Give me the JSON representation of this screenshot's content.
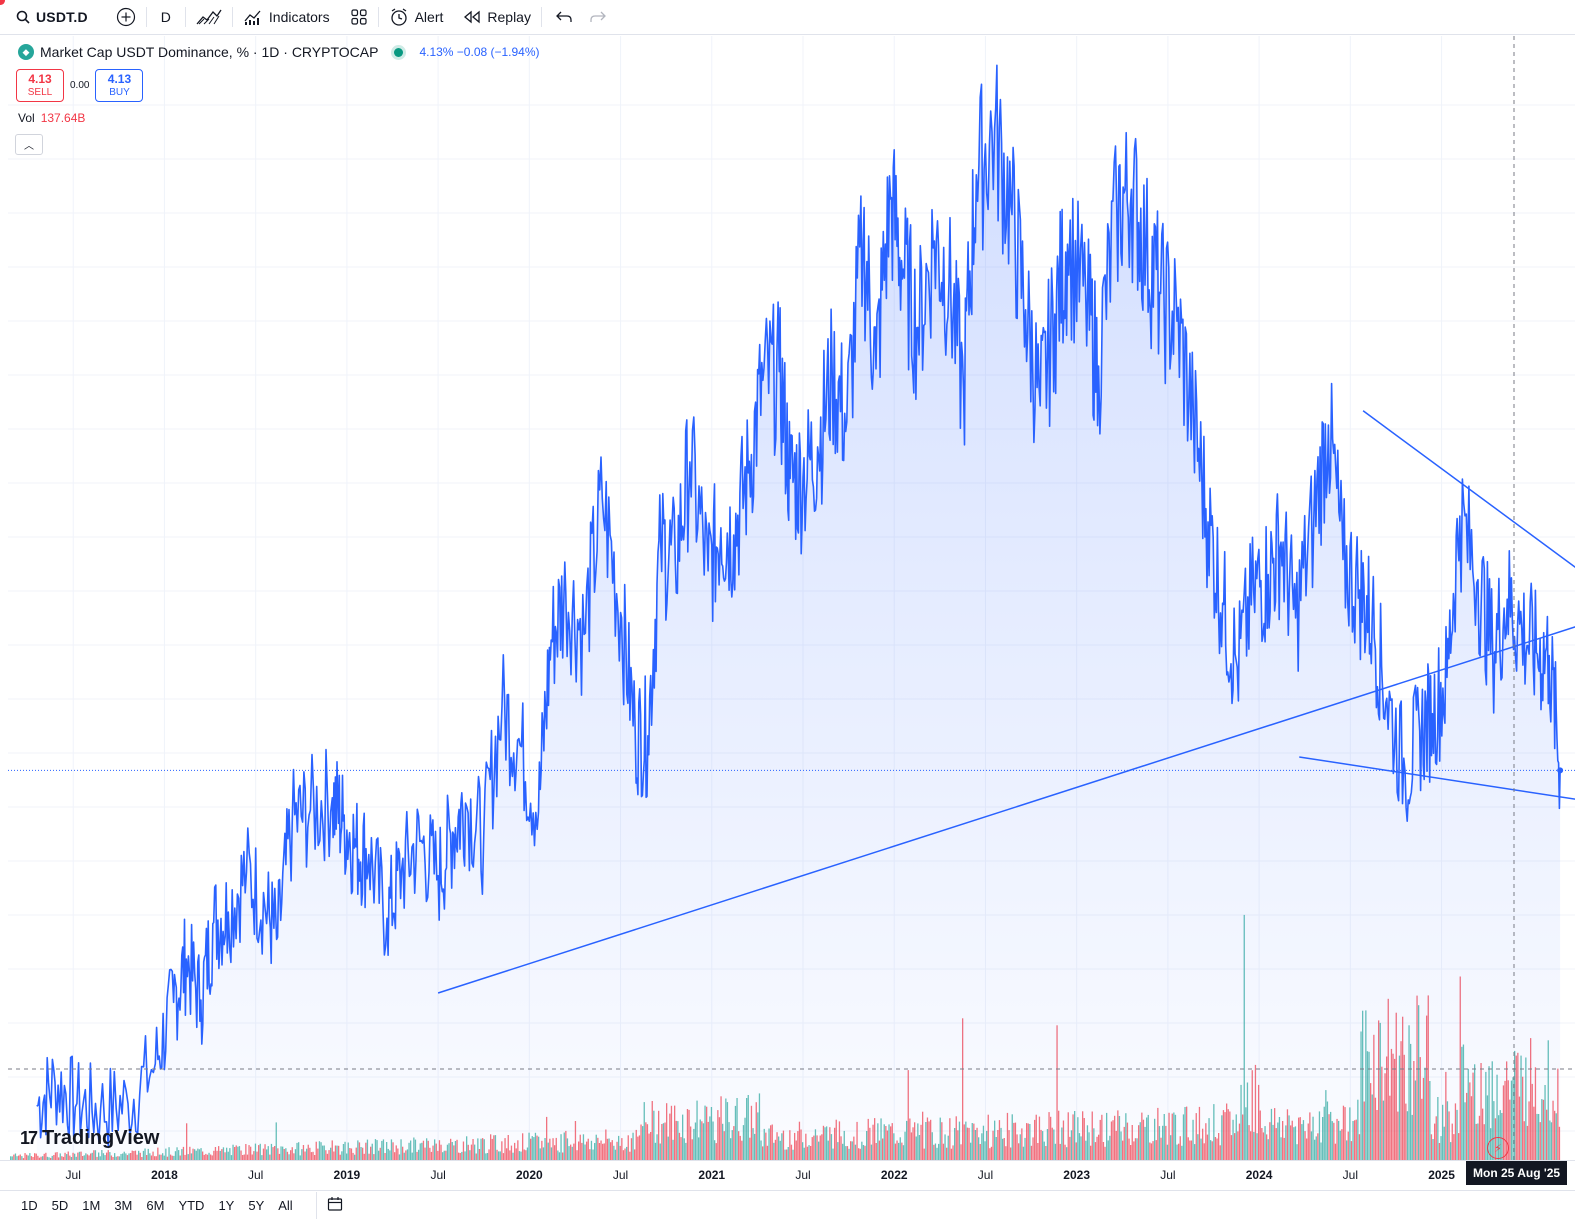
{
  "toolbar": {
    "symbol": "USDT.D",
    "interval": "D",
    "indicators_label": "Indicators",
    "alert_label": "Alert",
    "replay_label": "Replay"
  },
  "legend": {
    "title": "Market Cap USDT Dominance, % · 1D · CRYPTOCAP",
    "values": "4.13% −0.08 (−1.94%)"
  },
  "trade": {
    "sell_price": "4.13",
    "sell_label": "SELL",
    "spread": "0.00",
    "buy_price": "4.13",
    "buy_label": "BUY"
  },
  "volume": {
    "label": "Vol",
    "value": "137.64B"
  },
  "brand": "TradingView",
  "crosshair_date": "Mon 25 Aug '25",
  "ranges": [
    "1D",
    "5D",
    "1M",
    "3M",
    "6M",
    "YTD",
    "1Y",
    "5Y",
    "All"
  ],
  "colors": {
    "line": "#2962ff",
    "vol_up": "#26a69a",
    "vol_down": "#f23645"
  },
  "chart_data": {
    "type": "area",
    "title": "Market Cap USDT Dominance, % · 1D · CRYPTOCAP",
    "x_ticks": [
      "Jul",
      "2018",
      "Jul",
      "2019",
      "Jul",
      "2020",
      "Jul",
      "2021",
      "Jul",
      "2022",
      "Jul",
      "2023",
      "Jul",
      "2024",
      "Jul",
      "2025"
    ],
    "series": [
      {
        "name": "USDT.D",
        "x": [
          2017.3,
          2017.4,
          2017.52,
          2017.65,
          2017.8,
          2017.95,
          2018.05,
          2018.12,
          2018.2,
          2018.27,
          2018.35,
          2018.45,
          2018.55,
          2018.62,
          2018.7,
          2018.8,
          2018.92,
          2018.98,
          2019.05,
          2019.12,
          2019.22,
          2019.3,
          2019.4,
          2019.5,
          2019.58,
          2019.65,
          2019.75,
          2019.85,
          2019.95,
          2020.05,
          2020.12,
          2020.2,
          2020.3,
          2020.4,
          2020.5,
          2020.58,
          2020.65,
          2020.72,
          2020.8,
          2020.88,
          2020.98,
          2021.05,
          2021.12,
          2021.2,
          2021.28,
          2021.37,
          2021.43,
          2021.5,
          2021.58,
          2021.66,
          2021.74,
          2021.83,
          2021.9,
          2021.98,
          2022.05,
          2022.13,
          2022.22,
          2022.3,
          2022.38,
          2022.45,
          2022.55,
          2022.64,
          2022.72,
          2022.8,
          2022.88,
          2022.95,
          2023.05,
          2023.12,
          2023.22,
          2023.3,
          2023.38,
          2023.46,
          2023.55,
          2023.64,
          2023.72,
          2023.8,
          2023.88,
          2023.97,
          2024.05,
          2024.12,
          2024.2,
          2024.3,
          2024.38,
          2024.46,
          2024.55,
          2024.62,
          2024.7,
          2024.8,
          2024.88,
          2024.95,
          2025.03,
          2025.1,
          2025.2,
          2025.28,
          2025.36,
          2025.44,
          2025.52,
          2025.59,
          2025.65
        ],
        "y": [
          2.55,
          2.64,
          2.56,
          2.54,
          2.56,
          2.71,
          2.96,
          3.15,
          2.97,
          3.32,
          3.37,
          3.57,
          3.4,
          3.25,
          3.83,
          3.9,
          3.97,
          3.84,
          3.7,
          3.66,
          3.34,
          3.58,
          3.73,
          3.55,
          3.78,
          3.94,
          3.75,
          4.53,
          4.28,
          3.89,
          4.98,
          5.33,
          5.02,
          6.1,
          5.18,
          4.37,
          4.34,
          5.73,
          5.57,
          6.43,
          5.5,
          5.85,
          5.79,
          6.33,
          7.23,
          7.32,
          6.28,
          6.29,
          6.57,
          7.3,
          6.81,
          8.84,
          7.35,
          9.38,
          8.48,
          7.8,
          8.83,
          8.33,
          7.12,
          9.71,
          10.38,
          9.28,
          8.0,
          6.97,
          7.95,
          8.79,
          8.11,
          7.38,
          9.24,
          9.51,
          8.78,
          8.19,
          7.87,
          6.84,
          5.9,
          5.25,
          4.79,
          5.35,
          5.47,
          5.73,
          5.14,
          5.92,
          6.78,
          5.59,
          5.35,
          5.14,
          4.58,
          4.12,
          4.37,
          4.48,
          4.72,
          5.95,
          5.43,
          4.92,
          5.28,
          5.06,
          4.89,
          4.87,
          4.13
        ]
      }
    ],
    "trendlines": [
      {
        "x": [
          2019.5,
          2026.0
        ],
        "y": [
          3.0,
          5.19
        ]
      },
      {
        "x": [
          2024.57,
          2026.0
        ],
        "y": [
          6.92,
          5.25
        ]
      },
      {
        "x": [
          2024.22,
          2026.0
        ],
        "y": [
          4.21,
          3.92
        ]
      }
    ],
    "volume_value": "137.64B",
    "log_scale": true,
    "grid": true,
    "legend_position": "top-left"
  }
}
